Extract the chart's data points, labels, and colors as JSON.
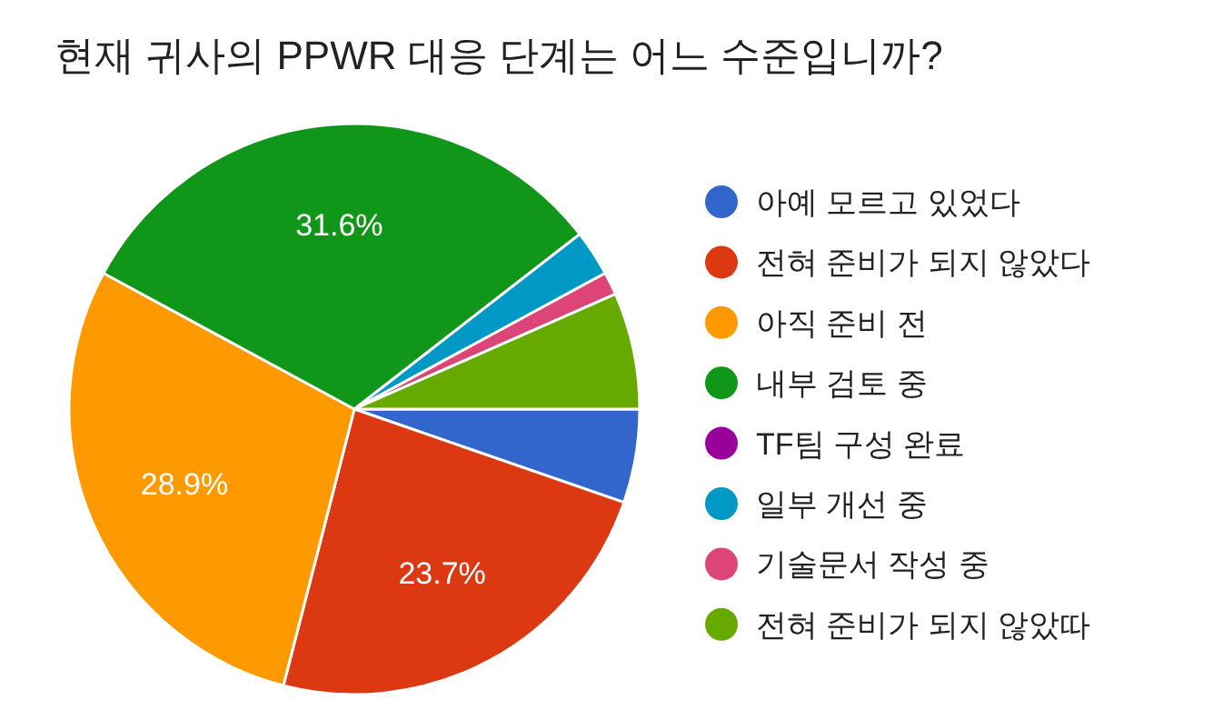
{
  "chart_data": {
    "type": "pie",
    "title": "현재 귀사의 PPWR 대응 단계는 어느 수준입니까?",
    "categories": [
      "아예 모르고 있었다",
      "전혀 준비가 되지 않았다",
      "아직 준비 전",
      "내부 검토 중",
      "TF팀 구성 완료",
      "일부 개선 중",
      "기술문서 작성 중",
      "전혀 준비가 되지 않았따"
    ],
    "values": [
      5.3,
      23.7,
      28.9,
      31.6,
      0,
      2.6,
      1.3,
      6.6
    ],
    "colors": [
      "#3366cc",
      "#dc3912",
      "#ff9900",
      "#109618",
      "#990099",
      "#0099c6",
      "#dd4477",
      "#66aa00"
    ],
    "value_labels": [
      null,
      "23.7%",
      "28.9%",
      "31.6%",
      null,
      null,
      null,
      null
    ],
    "legend": "right"
  }
}
